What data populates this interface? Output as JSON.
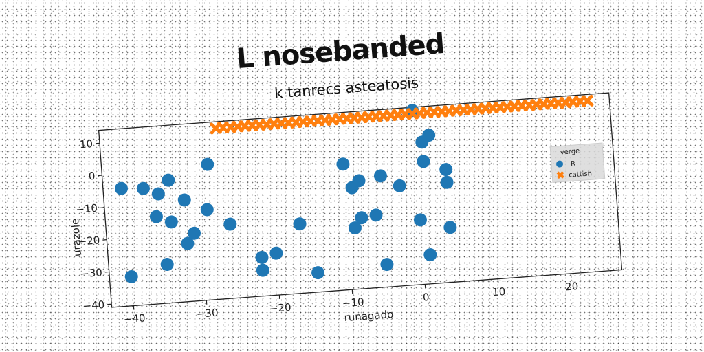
{
  "chart_data": {
    "type": "scatter",
    "title": "L nosebanded",
    "subtitle": "k tanrecs asteatosis",
    "xlabel": "runagado",
    "ylabel": "urazole",
    "xlim": [
      -43,
      27
    ],
    "ylim": [
      -41,
      14
    ],
    "xticks": [
      -40,
      -30,
      -20,
      -10,
      0,
      10,
      20
    ],
    "yticks": [
      -40,
      -30,
      -20,
      -10,
      0,
      10
    ],
    "grid": false,
    "legend": {
      "title": "verge",
      "placement": "right"
    },
    "series": [
      {
        "name": "R",
        "marker": "circle",
        "color": "#1f77b4",
        "points": [
          [
            -40.5,
            -4.5
          ],
          [
            -37.5,
            -5
          ],
          [
            -35.5,
            -7
          ],
          [
            -34,
            -3
          ],
          [
            -36,
            -14
          ],
          [
            -34,
            -16
          ],
          [
            -32,
            -9.5
          ],
          [
            -35,
            -29
          ],
          [
            -40,
            -32
          ],
          [
            -31,
            -20
          ],
          [
            -32,
            -23
          ],
          [
            -29,
            -13
          ],
          [
            -28.5,
            1
          ],
          [
            -26,
            -18
          ],
          [
            -22,
            -29
          ],
          [
            -22,
            -33
          ],
          [
            -20,
            -28
          ],
          [
            -16.5,
            -19.5
          ],
          [
            -14.5,
            -35
          ],
          [
            -10,
            -2
          ],
          [
            -9,
            -9.5
          ],
          [
            -8,
            -7.5
          ],
          [
            -9,
            -22
          ],
          [
            -8,
            -19
          ],
          [
            -6,
            -18.5
          ],
          [
            -5,
            -6.5
          ],
          [
            -5,
            -34
          ],
          [
            -2.5,
            -10
          ],
          [
            0,
            -21
          ],
          [
            0,
            13
          ],
          [
            1,
            3
          ],
          [
            2,
            5
          ],
          [
            1,
            -3
          ],
          [
            4,
            -6
          ],
          [
            4,
            -10
          ],
          [
            4,
            -24
          ],
          [
            1,
            -32
          ]
        ]
      },
      {
        "name": "cattish",
        "marker": "x",
        "color": "#ff7f0e",
        "x_start": -27,
        "x_end": 24,
        "x_step": 1,
        "y": 12
      }
    ]
  }
}
